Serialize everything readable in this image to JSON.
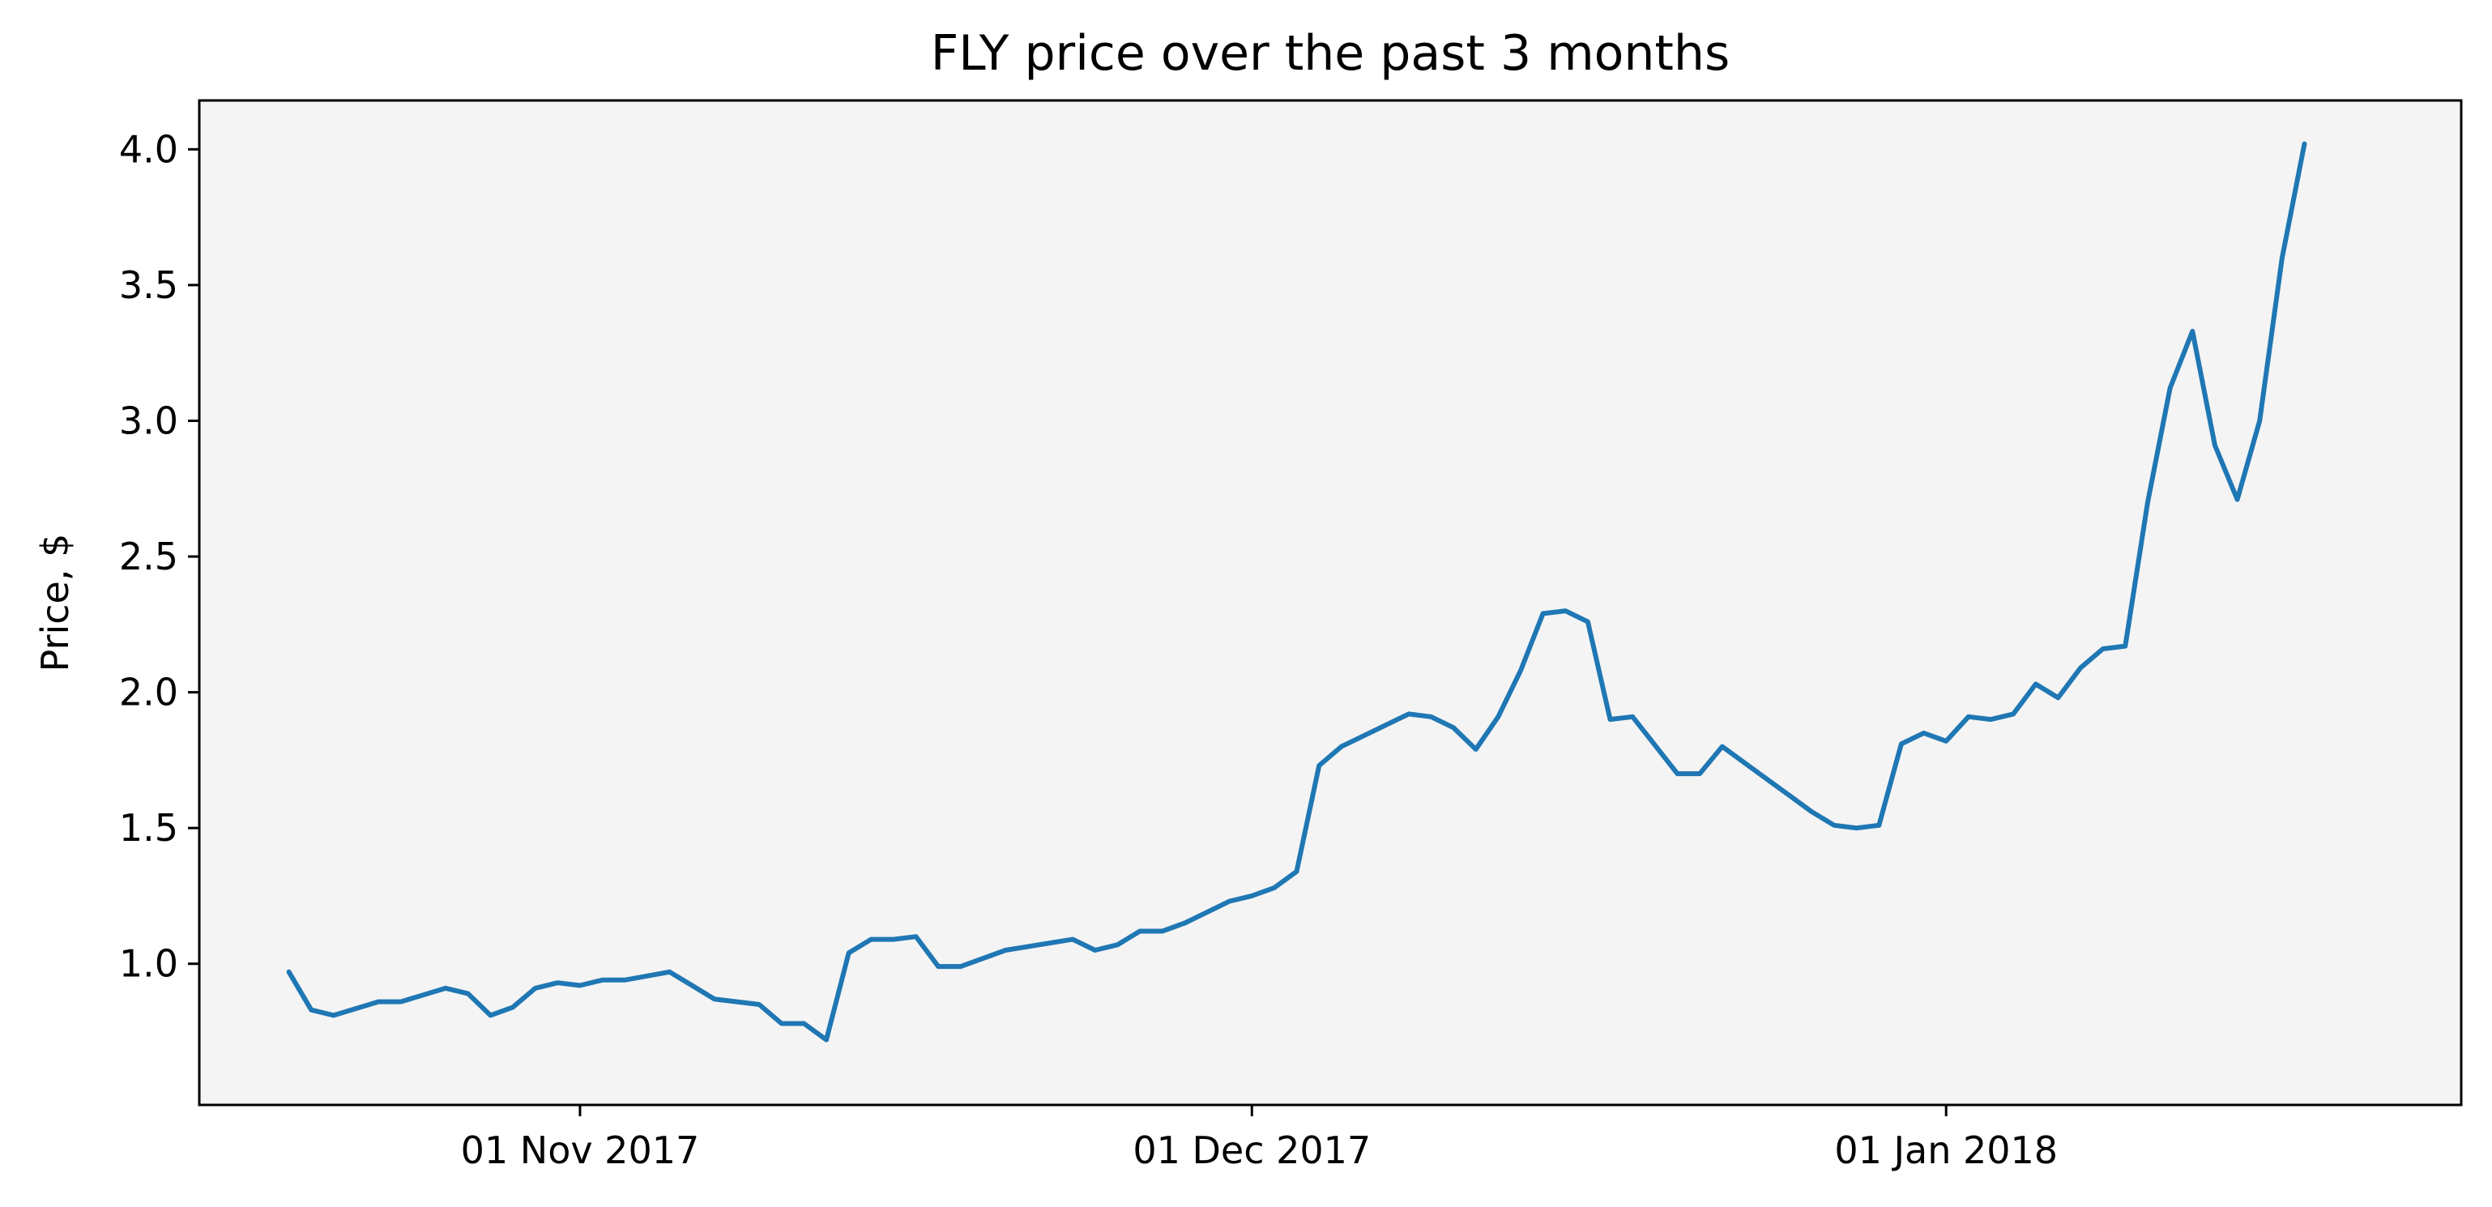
{
  "chart_data": {
    "type": "line",
    "title": "FLY price over the past 3 months",
    "xlabel": "",
    "ylabel": "Price, $",
    "grid": false,
    "legend": "none",
    "colors": {
      "background": "#f4f4f4",
      "line": "#1f77b4"
    },
    "x_tick_labels": [
      {
        "date": "2017-11-01",
        "label": "01 Nov 2017"
      },
      {
        "date": "2017-12-01",
        "label": "01 Dec 2017"
      },
      {
        "date": "2018-01-01",
        "label": "01 Jan 2018"
      }
    ],
    "y_ticks": [
      1.0,
      1.5,
      2.0,
      2.5,
      3.0,
      3.5,
      4.0
    ],
    "y_tick_labels": [
      "1.0",
      "1.5",
      "2.0",
      "2.5",
      "3.0",
      "3.5",
      "4.0"
    ],
    "ylim": [
      0.48,
      4.18
    ],
    "xlim": [
      "2017-10-15",
      "2018-01-24"
    ],
    "series": [
      {
        "x": [
          "2017-10-19",
          "2017-10-20",
          "2017-10-21",
          "2017-10-23",
          "2017-10-24",
          "2017-10-26",
          "2017-10-27",
          "2017-10-28",
          "2017-10-29",
          "2017-10-30",
          "2017-10-31",
          "2017-11-01",
          "2017-11-02",
          "2017-11-03",
          "2017-11-05",
          "2017-11-06",
          "2017-11-07",
          "2017-11-09",
          "2017-11-10",
          "2017-11-11",
          "2017-11-12",
          "2017-11-13",
          "2017-11-14",
          "2017-11-15",
          "2017-11-16",
          "2017-11-17",
          "2017-11-18",
          "2017-11-20",
          "2017-11-23",
          "2017-11-24",
          "2017-11-25",
          "2017-11-26",
          "2017-11-27",
          "2017-11-28",
          "2017-11-29",
          "2017-11-30",
          "2017-12-01",
          "2017-12-02",
          "2017-12-03",
          "2017-12-04",
          "2017-12-05",
          "2017-12-06",
          "2017-12-07",
          "2017-12-08",
          "2017-12-09",
          "2017-12-10",
          "2017-12-11",
          "2017-12-12",
          "2017-12-13",
          "2017-12-14",
          "2017-12-15",
          "2017-12-16",
          "2017-12-17",
          "2017-12-18",
          "2017-12-20",
          "2017-12-21",
          "2017-12-22",
          "2017-12-23",
          "2017-12-24",
          "2017-12-25",
          "2017-12-26",
          "2017-12-27",
          "2017-12-28",
          "2017-12-29",
          "2017-12-30",
          "2017-12-31",
          "2018-01-01",
          "2018-01-02",
          "2018-01-03",
          "2018-01-04",
          "2018-01-05",
          "2018-01-06",
          "2018-01-07",
          "2018-01-08",
          "2018-01-09",
          "2018-01-10",
          "2018-01-11",
          "2018-01-12",
          "2018-01-13",
          "2018-01-14",
          "2018-01-15",
          "2018-01-16",
          "2018-01-17",
          "2018-01-18",
          "2018-01-19",
          "2018-01-20",
          "2018-01-21",
          "2018-01-22"
        ],
        "y": [
          0.97,
          0.83,
          0.81,
          0.86,
          0.86,
          0.91,
          0.89,
          0.81,
          0.84,
          0.91,
          0.93,
          0.92,
          0.94,
          0.94,
          0.97,
          0.92,
          0.87,
          0.85,
          0.78,
          0.78,
          0.72,
          1.04,
          1.09,
          1.09,
          1.1,
          0.99,
          0.99,
          1.05,
          1.09,
          1.05,
          1.07,
          1.12,
          1.12,
          1.15,
          1.19,
          1.23,
          1.25,
          1.28,
          1.34,
          1.73,
          1.8,
          1.84,
          1.88,
          1.92,
          1.91,
          1.87,
          1.79,
          1.91,
          2.08,
          2.29,
          2.3,
          2.26,
          1.9,
          1.91,
          1.7,
          1.7,
          1.8,
          1.74,
          1.68,
          1.62,
          1.56,
          1.51,
          1.5,
          1.51,
          1.81,
          1.85,
          1.82,
          1.91,
          1.9,
          1.92,
          2.03,
          1.98,
          2.09,
          2.16,
          2.17,
          2.7,
          3.12,
          3.33,
          2.91,
          2.71,
          3.0,
          3.6,
          4.02,
          null,
          null,
          null,
          null,
          null
        ]
      }
    ]
  }
}
